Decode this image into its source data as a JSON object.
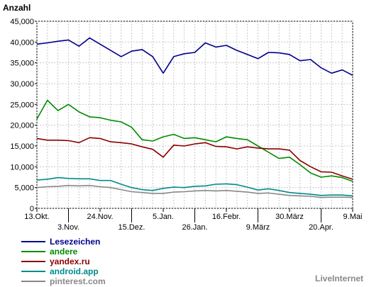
{
  "chart_data": {
    "type": "line",
    "ylabel": "Anzahl",
    "ylim": [
      0,
      45000
    ],
    "yticks": [
      "0",
      "5,000",
      "10,000",
      "15,000",
      "20,000",
      "25,000",
      "30,000",
      "35,000",
      "40,000",
      "45,000"
    ],
    "yticks_values": [
      0,
      5000,
      10000,
      15000,
      20000,
      25000,
      30000,
      35000,
      40000,
      45000
    ],
    "grid": true,
    "x_tick_labels_row1": [
      {
        "label": "13.Okt.",
        "index": 0
      },
      {
        "label": "24.Nov.",
        "index": 6
      },
      {
        "label": "5.Jan.",
        "index": 12
      },
      {
        "label": "16.Febr.",
        "index": 18
      },
      {
        "label": "30.März",
        "index": 24
      },
      {
        "label": "9.Mai",
        "index": 30
      }
    ],
    "x_tick_labels_row2": [
      {
        "label": "3.Nov.",
        "index": 3
      },
      {
        "label": "15.Dez.",
        "index": 9
      },
      {
        "label": "26.Jan.",
        "index": 15
      },
      {
        "label": "9.März",
        "index": 21
      },
      {
        "label": "20.Apr.",
        "index": 27
      }
    ],
    "x_count": 31,
    "series": [
      {
        "name": "Lesezeichen",
        "color": "#00008b",
        "values": [
          39500,
          39800,
          40200,
          40500,
          39000,
          41000,
          39500,
          38000,
          36500,
          37800,
          38200,
          36500,
          32500,
          36500,
          37200,
          37500,
          39800,
          38800,
          39200,
          38000,
          37000,
          36000,
          37500,
          37400,
          37000,
          35500,
          35800,
          33800,
          32500,
          33300,
          32000
        ]
      },
      {
        "name": "andere",
        "color": "#008b00",
        "values": [
          21500,
          26000,
          23500,
          25000,
          23200,
          22000,
          21800,
          21200,
          20800,
          19500,
          16500,
          16200,
          17200,
          17800,
          16800,
          17000,
          16500,
          16000,
          17200,
          16800,
          16500,
          15000,
          13500,
          12000,
          12300,
          10500,
          8500,
          7500,
          7800,
          7400,
          6500
        ]
      },
      {
        "name": "yandex.ru",
        "color": "#8b0000",
        "values": [
          16800,
          16400,
          16400,
          16300,
          15800,
          17000,
          16800,
          16000,
          15800,
          15500,
          14800,
          14200,
          12300,
          15200,
          15000,
          15500,
          15800,
          14900,
          14800,
          14300,
          14800,
          14500,
          14300,
          14300,
          14000,
          11500,
          10000,
          8800,
          8700,
          7800,
          7000
        ]
      },
      {
        "name": "android.app",
        "color": "#008b8b",
        "values": [
          6800,
          7000,
          7400,
          7200,
          7100,
          7100,
          6700,
          6700,
          5800,
          5000,
          4500,
          4300,
          4800,
          5100,
          5000,
          5300,
          5400,
          5800,
          5900,
          5700,
          5100,
          4400,
          4700,
          4300,
          3800,
          3600,
          3400,
          3100,
          3200,
          3200,
          3000
        ]
      },
      {
        "name": "pinterest.com",
        "color": "#888888",
        "values": [
          5000,
          5200,
          5300,
          5500,
          5400,
          5500,
          5200,
          5000,
          4500,
          4000,
          3800,
          3600,
          3600,
          3900,
          4000,
          4200,
          4300,
          4200,
          4300,
          4100,
          3900,
          3600,
          3700,
          3400,
          3100,
          3000,
          2900,
          2600,
          2700,
          2700,
          2600
        ]
      }
    ]
  },
  "watermark": "LiveInternet"
}
